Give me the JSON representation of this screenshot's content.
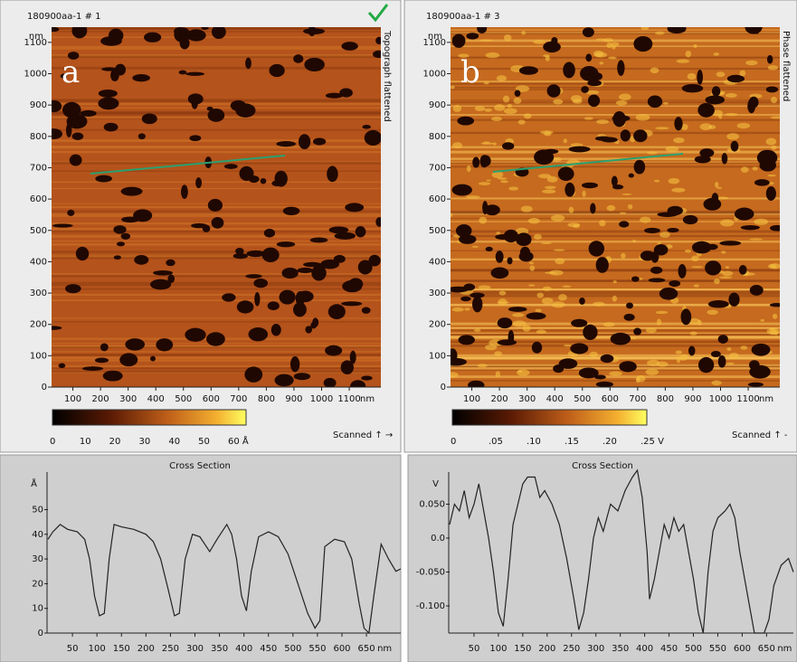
{
  "panels": [
    {
      "header": "180900aa-1 # 1",
      "letter": "a",
      "side_label": "Topograph flattened",
      "y_unit": "nm",
      "x_unit": "nm",
      "yticks": [
        0,
        100,
        200,
        300,
        400,
        500,
        600,
        700,
        800,
        900,
        1000,
        1100
      ],
      "xticks": [
        100,
        200,
        300,
        400,
        500,
        600,
        700,
        800,
        900,
        1000,
        1100
      ],
      "colorbar_ticks": [
        "0",
        "10",
        "20",
        "30",
        "40",
        "50",
        "60 Å"
      ],
      "scanned": "Scanned ↑ →"
    },
    {
      "header": "180900aa-1 # 3",
      "letter": "b",
      "side_label": "Phase flattened",
      "y_unit": "nm",
      "x_unit": "nm",
      "yticks": [
        0,
        100,
        200,
        300,
        400,
        500,
        600,
        700,
        800,
        900,
        1000,
        1100
      ],
      "xticks": [
        100,
        200,
        300,
        400,
        500,
        600,
        700,
        800,
        900,
        1000,
        1100
      ],
      "colorbar_ticks": [
        "0",
        ".05",
        ".10",
        ".15",
        ".20",
        ".25 V"
      ],
      "scanned": "Scanned ↑ -"
    }
  ],
  "chart_data": [
    {
      "type": "line",
      "title": "Cross Section",
      "y_unit": "Å",
      "x_unit": "nm",
      "color": "#222222",
      "xlim": [
        0,
        720
      ],
      "ylim": [
        0,
        63
      ],
      "xticks": [
        50,
        100,
        150,
        200,
        250,
        300,
        350,
        400,
        450,
        500,
        550,
        600,
        650
      ],
      "yticks": [
        0,
        10,
        20,
        30,
        40,
        50
      ],
      "x": [
        0,
        10,
        25,
        40,
        60,
        75,
        85,
        95,
        105,
        115,
        125,
        135,
        150,
        175,
        200,
        215,
        230,
        245,
        258,
        268,
        280,
        295,
        310,
        330,
        345,
        365,
        375,
        385,
        395,
        405,
        415,
        430,
        450,
        470,
        490,
        510,
        530,
        545,
        555,
        565,
        585,
        605,
        620,
        635,
        645,
        655,
        665,
        680,
        695,
        710,
        720
      ],
      "values": [
        38,
        41,
        44,
        42,
        41,
        38,
        30,
        15,
        7,
        8,
        30,
        44,
        43,
        42,
        40,
        37,
        30,
        18,
        7,
        8,
        30,
        40,
        39,
        33,
        38,
        44,
        40,
        30,
        15,
        9,
        25,
        39,
        41,
        39,
        32,
        20,
        8,
        2,
        5,
        35,
        38,
        37,
        30,
        12,
        2,
        0,
        15,
        36,
        30,
        25,
        26
      ]
    },
    {
      "type": "line",
      "title": "Cross Section",
      "y_unit": "V",
      "x_unit": "nm",
      "color": "#222222",
      "xlim": [
        0,
        705
      ],
      "ylim": [
        -0.14,
        0.1
      ],
      "xticks": [
        50,
        100,
        150,
        200,
        250,
        300,
        350,
        400,
        450,
        500,
        550,
        600,
        650
      ],
      "yticks": [
        {
          "value": -0.1,
          "label": "-0.100"
        },
        {
          "value": -0.05,
          "label": "-0.050"
        },
        {
          "value": 0,
          "label": "0.0"
        },
        {
          "value": 0.05,
          "label": "0.050"
        }
      ],
      "x": [
        0,
        10,
        20,
        30,
        40,
        50,
        60,
        70,
        80,
        90,
        100,
        110,
        120,
        130,
        140,
        150,
        160,
        175,
        185,
        195,
        210,
        225,
        240,
        255,
        265,
        275,
        285,
        295,
        305,
        315,
        330,
        345,
        360,
        375,
        385,
        395,
        405,
        410,
        420,
        430,
        440,
        450,
        460,
        470,
        480,
        490,
        500,
        510,
        520,
        530,
        540,
        550,
        565,
        575,
        585,
        595,
        610,
        625,
        645,
        655,
        665,
        680,
        695,
        705
      ],
      "values": [
        0.02,
        0.05,
        0.04,
        0.07,
        0.03,
        0.05,
        0.08,
        0.04,
        0.0,
        -0.05,
        -0.11,
        -0.13,
        -0.06,
        0.02,
        0.05,
        0.08,
        0.09,
        0.09,
        0.06,
        0.07,
        0.05,
        0.02,
        -0.03,
        -0.09,
        -0.135,
        -0.11,
        -0.06,
        0.0,
        0.03,
        0.01,
        0.05,
        0.04,
        0.07,
        0.09,
        0.1,
        0.06,
        -0.02,
        -0.09,
        -0.06,
        -0.02,
        0.02,
        0.0,
        0.03,
        0.01,
        0.02,
        -0.02,
        -0.06,
        -0.11,
        -0.14,
        -0.05,
        0.01,
        0.03,
        0.04,
        0.05,
        0.03,
        -0.02,
        -0.08,
        -0.14,
        -0.14,
        -0.12,
        -0.07,
        -0.04,
        -0.03,
        -0.05
      ]
    }
  ]
}
